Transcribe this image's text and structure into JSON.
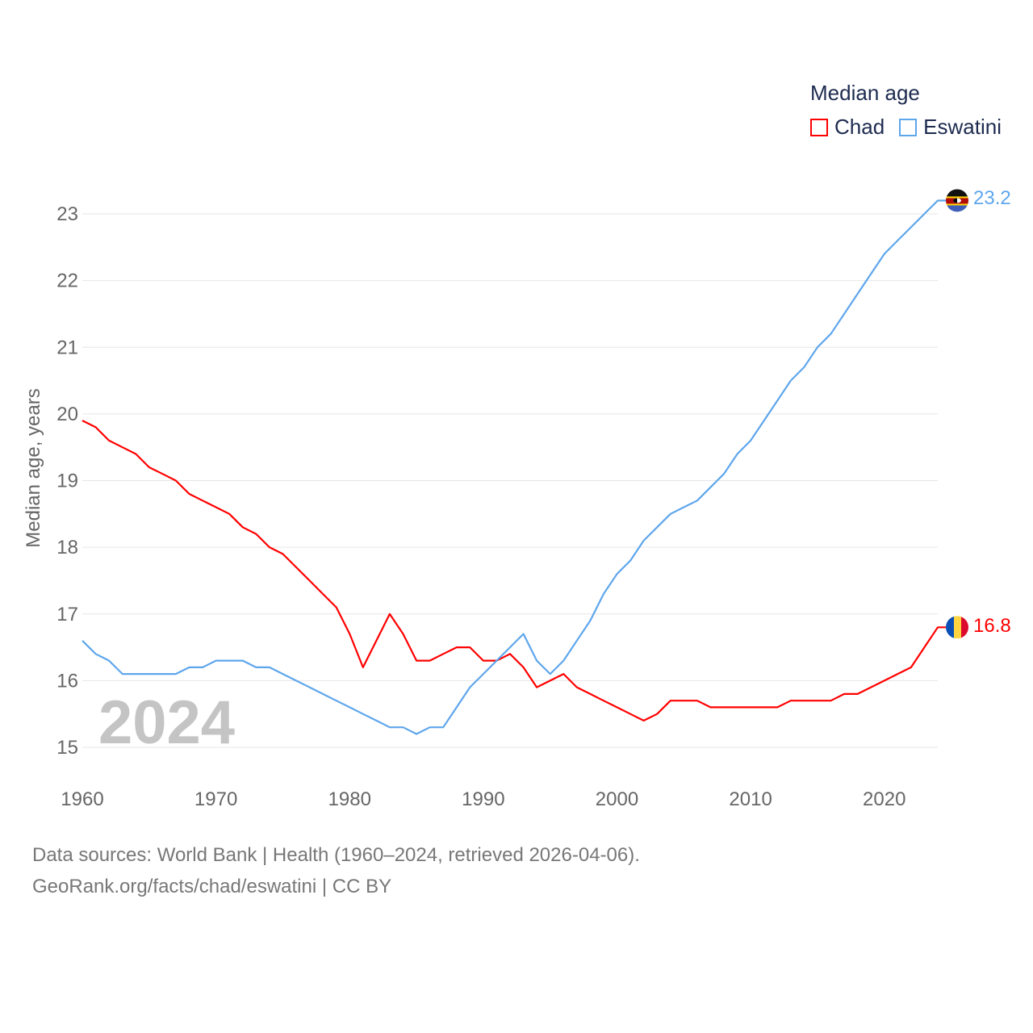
{
  "chart_data": {
    "type": "line",
    "legend_title": "Median age",
    "legend_placement": "top-right",
    "ylabel": "Median age, years",
    "xlabel": "",
    "xlim": [
      1960,
      2024
    ],
    "ylim": [
      15,
      23
    ],
    "xticks": [
      "1960",
      "1970",
      "1980",
      "1990",
      "2000",
      "2010",
      "2020"
    ],
    "yticks": [
      "15",
      "16",
      "17",
      "18",
      "19",
      "20",
      "21",
      "22",
      "23"
    ],
    "grid": true,
    "year_overlay": "2024",
    "x": [
      1960,
      1961,
      1962,
      1963,
      1964,
      1965,
      1966,
      1967,
      1968,
      1969,
      1970,
      1971,
      1972,
      1973,
      1974,
      1975,
      1976,
      1977,
      1978,
      1979,
      1980,
      1981,
      1982,
      1983,
      1984,
      1985,
      1986,
      1987,
      1988,
      1989,
      1990,
      1991,
      1992,
      1993,
      1994,
      1995,
      1996,
      1997,
      1998,
      1999,
      2000,
      2001,
      2002,
      2003,
      2004,
      2005,
      2006,
      2007,
      2008,
      2009,
      2010,
      2011,
      2012,
      2013,
      2014,
      2015,
      2016,
      2017,
      2018,
      2019,
      2020,
      2021,
      2022,
      2023,
      2024
    ],
    "series": [
      {
        "name": "Chad",
        "color": "#ff0000",
        "end_label": "16.8",
        "values": [
          19.9,
          19.8,
          19.6,
          19.5,
          19.4,
          19.2,
          19.1,
          19.0,
          18.8,
          18.7,
          18.6,
          18.5,
          18.3,
          18.2,
          18.0,
          17.9,
          17.7,
          17.5,
          17.3,
          17.1,
          16.7,
          16.2,
          16.6,
          17.0,
          16.7,
          16.3,
          16.3,
          16.4,
          16.5,
          16.5,
          16.3,
          16.3,
          16.4,
          16.2,
          15.9,
          16.0,
          16.1,
          15.9,
          15.8,
          15.7,
          15.6,
          15.5,
          15.4,
          15.5,
          15.7,
          15.7,
          15.7,
          15.6,
          15.6,
          15.6,
          15.6,
          15.6,
          15.6,
          15.7,
          15.7,
          15.7,
          15.7,
          15.8,
          15.8,
          15.9,
          16.0,
          16.1,
          16.2,
          16.5,
          16.8
        ]
      },
      {
        "name": "Eswatini",
        "color": "#5ea6ec",
        "end_label": "23.2",
        "values": [
          16.6,
          16.4,
          16.3,
          16.1,
          16.1,
          16.1,
          16.1,
          16.1,
          16.2,
          16.2,
          16.3,
          16.3,
          16.3,
          16.2,
          16.2,
          16.1,
          16.0,
          15.9,
          15.8,
          15.7,
          15.6,
          15.5,
          15.4,
          15.3,
          15.3,
          15.2,
          15.3,
          15.3,
          15.6,
          15.9,
          16.1,
          16.3,
          16.5,
          16.7,
          16.3,
          16.1,
          16.3,
          16.6,
          16.9,
          17.3,
          17.6,
          17.8,
          18.1,
          18.3,
          18.5,
          18.6,
          18.7,
          18.9,
          19.1,
          19.4,
          19.6,
          19.9,
          20.2,
          20.5,
          20.7,
          21.0,
          21.2,
          21.5,
          21.8,
          22.1,
          22.4,
          22.6,
          22.8,
          23.0,
          23.2
        ]
      }
    ]
  },
  "footer": {
    "line1": "Data sources: World Bank | Health (1960–2024, retrieved 2026-04-06).",
    "line2": "GeoRank.org/facts/chad/eswatini | CC BY"
  }
}
